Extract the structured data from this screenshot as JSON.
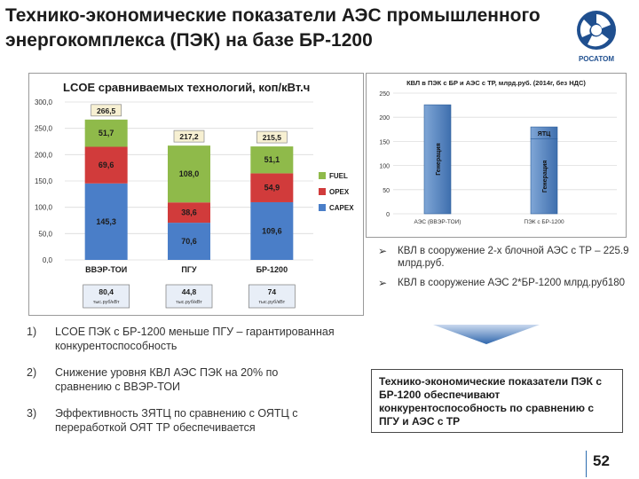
{
  "slide": {
    "title": "Технико-экономические показатели АЭС промышленного энергокомплекса (ПЭК) на базе БР-1200",
    "logo_text": "РОСАТОМ",
    "page_number": "52"
  },
  "chart_data": [
    {
      "type": "bar",
      "stacked": true,
      "title": "LCOE сравниваемых технологий, коп/кВт.ч",
      "categories": [
        "ВВЭР-ТОИ",
        "ПГУ",
        "БР-1200"
      ],
      "series": [
        {
          "name": "CAPEX",
          "values": [
            145.3,
            70.6,
            109.6
          ],
          "color": "#4a7ec8"
        },
        {
          "name": "OPEX",
          "values": [
            69.6,
            38.6,
            54.9
          ],
          "color": "#d13b3b"
        },
        {
          "name": "FUEL",
          "values": [
            51.7,
            108.0,
            51.1
          ],
          "color": "#8fba4a"
        }
      ],
      "totals": [
        "266,5",
        "217,2",
        "215,5"
      ],
      "data_labels": {
        "CAPEX": [
          "145,3",
          "70,6",
          "109,6"
        ],
        "OPEX": [
          "69,6",
          "38,6",
          "54,9"
        ],
        "FUEL": [
          "51,7",
          "108,0",
          "51,1"
        ]
      },
      "y_ticks": [
        "300,0",
        "250,0",
        "200,0",
        "150,0",
        "100,0",
        "50,0",
        "0,0"
      ],
      "ylim": [
        0,
        300
      ],
      "legend": [
        "FUEL",
        "OPEX",
        "CAPEX"
      ],
      "legend_position": "right",
      "capex_boxes": [
        {
          "value": "80,4",
          "unit": "тыс.руб/кВт"
        },
        {
          "value": "44,8",
          "unit": "тыс.руб/кВт"
        },
        {
          "value": "74",
          "unit": "тыс.руб/кВт"
        }
      ]
    },
    {
      "type": "bar",
      "stacked": true,
      "title": "КВЛ в ПЭК с БР и АЭС с ТР, млрд.руб. (2014г, без НДС)",
      "categories": [
        "АЭС (ВВЭР-ТОИ)",
        "ПЭК с БР-1200"
      ],
      "series": [
        {
          "name": "Генерация",
          "values": [
            225.9,
            155
          ]
        },
        {
          "name": "ЯТЦ",
          "values": [
            0,
            25
          ]
        }
      ],
      "segment_labels": [
        "Генерация",
        "Генерация",
        "ЯТЦ"
      ],
      "y_ticks": [
        "250",
        "200",
        "150",
        "100",
        "50",
        "0"
      ],
      "ylim": [
        0,
        250
      ]
    }
  ],
  "bullets": [
    {
      "text": "КВЛ в сооружение 2-х блочной АЭС с ТР – 225.9 млрд.руб.",
      "value": ""
    },
    {
      "text": "КВЛ в сооружение АЭС 2*БР-1200 млрд.руб.",
      "value": "180"
    }
  ],
  "conclusions": [
    {
      "index": "1)",
      "text": "LCOE ПЭК с БР-1200 меньше ПГУ – гарантированная конкурентоспособность"
    },
    {
      "index": "2)",
      "text": "Снижение уровня КВЛ АЭС ПЭК на 20% по сравнению с ВВЭР-ТОИ"
    },
    {
      "index": "3)",
      "text": "Эффективность ЗЯТЦ по сравнению с ОЯТЦ с переработкой ОЯТ ТР обеспечивается"
    }
  ],
  "summary": "Технико-экономические показатели ПЭК с БР-1200 обеспечивают конкурентоспособность по сравнению с ПГУ и АЭС с ТР"
}
